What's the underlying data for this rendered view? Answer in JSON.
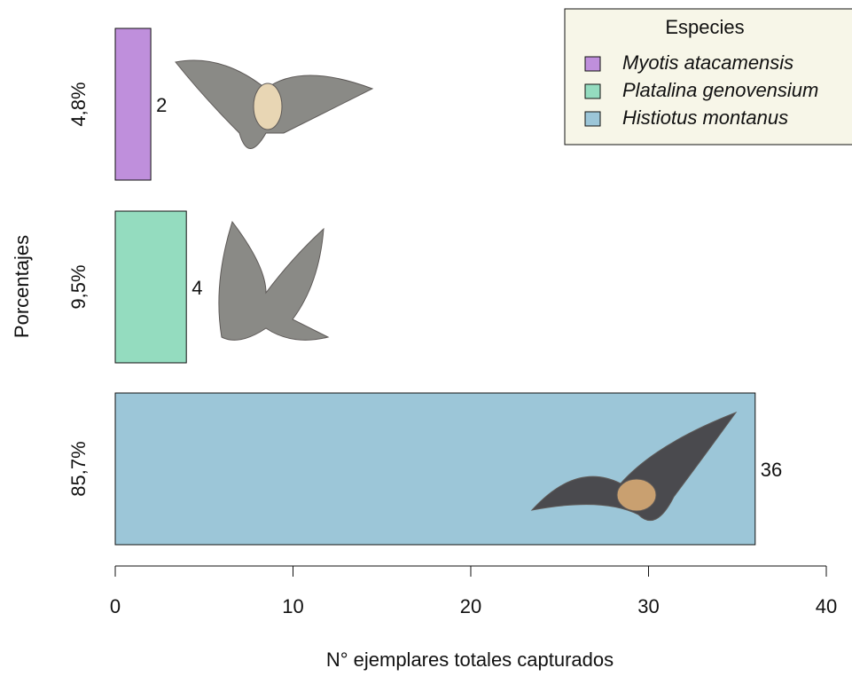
{
  "chart_data": {
    "type": "bar",
    "orientation": "horizontal",
    "categories": [
      "4,8%",
      "9,5%",
      "85,7%"
    ],
    "series": [
      {
        "name": "Myotis atacamensis",
        "color": "#bf8fdc",
        "values": [
          2,
          null,
          null
        ]
      },
      {
        "name": "Platalina genovensium",
        "color": "#94dcbf",
        "values": [
          null,
          4,
          null
        ]
      },
      {
        "name": "Histiotus montanus",
        "color": "#9cc6d8",
        "values": [
          null,
          null,
          36
        ]
      }
    ],
    "xlabel": "N° ejemplares totales capturados",
    "ylabel": "Porcentajes",
    "legend_title": "Especies",
    "legend": "top-right",
    "xlim": [
      0,
      40
    ],
    "xticks": [
      0,
      10,
      20,
      30,
      40
    ]
  }
}
